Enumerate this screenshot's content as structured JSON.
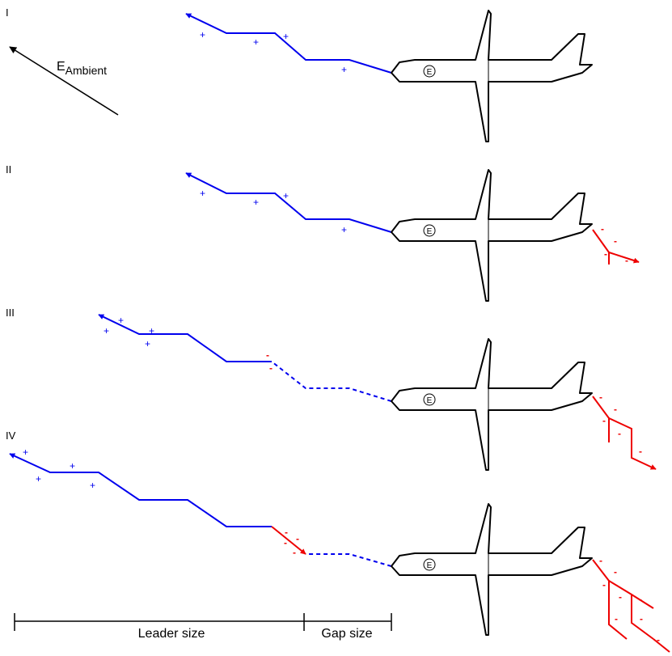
{
  "panels": [
    "I",
    "II",
    "III",
    "IV"
  ],
  "field_label": {
    "main": "E",
    "sub": "Ambient"
  },
  "charge_mark": "E",
  "signs": {
    "positive": "+",
    "negative": "-"
  },
  "scale": {
    "leader_label": "Leader size",
    "gap_label": "Gap size"
  },
  "colors": {
    "positive_leader": "#0000ee",
    "negative_leader": "#ee0000",
    "aircraft": "#000000"
  }
}
